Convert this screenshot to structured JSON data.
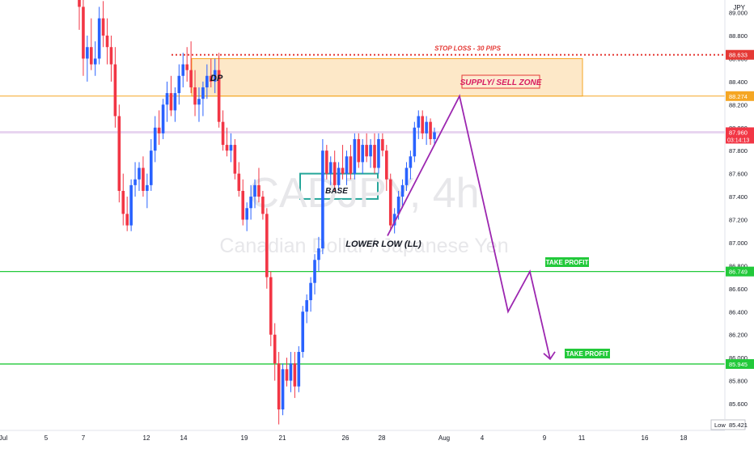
{
  "currency_label": "JPY",
  "watermark": {
    "symbol": "CADJPY, 4h",
    "name": "Canadian Dollar / Japanese Yen"
  },
  "colors": {
    "up": "#2962ff",
    "down": "#f23645",
    "stop_loss": "#e53935",
    "zone_fill": "#fde8c8",
    "zone_border": "#f5a623",
    "target": "#22c93a",
    "base_box": "#26a69a",
    "projection": "#9c27b0",
    "current_price": "#f23645",
    "price_line": "#e8d5f0"
  },
  "axis": {
    "price_ticks": [
      "85.600",
      "85.800",
      "86.000",
      "86.200",
      "86.400",
      "86.600",
      "86.800",
      "87.000",
      "87.200",
      "87.400",
      "87.600",
      "87.800",
      "88.000",
      "88.200",
      "88.400",
      "88.600",
      "88.800",
      "89.000"
    ],
    "date_ticks": [
      "Jul",
      "5",
      "7",
      "12",
      "14",
      "19",
      "21",
      "26",
      "28",
      "Aug",
      "4",
      "9",
      "11",
      "16",
      "18"
    ],
    "low_label": "Low",
    "low_value": "85.421"
  },
  "price_tags": {
    "stop_loss": "88.633",
    "zone_top": "88.274",
    "current": "87.960",
    "countdown": "03:14:13",
    "tp1": "86.749",
    "tp2": "85.945"
  },
  "annotations": {
    "stop_loss": "STOP LOSS - 30 PIPS",
    "dp": "DP",
    "supply_zone": "SUPPLY/ SELL ZONE",
    "base": "BASE",
    "lower_low": "LOWER LOW (LL)",
    "tp1": "TAKE PROFIT",
    "tp2": "TAKE PROFIT"
  },
  "chart_data": {
    "type": "candlestick",
    "symbol": "CADJPY",
    "timeframe": "4h",
    "ylim": [
      85.35,
      89.05
    ],
    "levels": {
      "stop_loss": 88.633,
      "supply_zone": [
        88.274,
        88.6
      ],
      "current_price": 87.96,
      "base_zone": [
        87.38,
        87.6
      ],
      "take_profit_1": 86.749,
      "take_profit_2": 85.945,
      "low": 85.421
    },
    "candles": [
      {
        "o": 89.25,
        "h": 89.4,
        "l": 88.85,
        "c": 89.05
      },
      {
        "o": 89.05,
        "h": 89.15,
        "l": 88.45,
        "c": 88.6
      },
      {
        "o": 88.6,
        "h": 88.8,
        "l": 88.4,
        "c": 88.7
      },
      {
        "o": 88.7,
        "h": 88.95,
        "l": 88.5,
        "c": 88.55
      },
      {
        "o": 88.55,
        "h": 88.75,
        "l": 88.45,
        "c": 88.6
      },
      {
        "o": 88.6,
        "h": 89.05,
        "l": 88.55,
        "c": 88.95
      },
      {
        "o": 88.95,
        "h": 89.1,
        "l": 88.7,
        "c": 88.8
      },
      {
        "o": 88.8,
        "h": 88.95,
        "l": 88.55,
        "c": 88.7
      },
      {
        "o": 88.7,
        "h": 88.8,
        "l": 88.4,
        "c": 88.55
      },
      {
        "o": 88.55,
        "h": 88.7,
        "l": 88.0,
        "c": 88.1
      },
      {
        "o": 88.1,
        "h": 88.2,
        "l": 87.35,
        "c": 87.45
      },
      {
        "o": 87.45,
        "h": 87.6,
        "l": 87.15,
        "c": 87.25
      },
      {
        "o": 87.25,
        "h": 87.4,
        "l": 87.1,
        "c": 87.15
      },
      {
        "o": 87.15,
        "h": 87.55,
        "l": 87.1,
        "c": 87.5
      },
      {
        "o": 87.5,
        "h": 87.7,
        "l": 87.4,
        "c": 87.55
      },
      {
        "o": 87.55,
        "h": 87.7,
        "l": 87.45,
        "c": 87.65
      },
      {
        "o": 87.65,
        "h": 87.75,
        "l": 87.4,
        "c": 87.45
      },
      {
        "o": 87.45,
        "h": 87.6,
        "l": 87.3,
        "c": 87.5
      },
      {
        "o": 87.5,
        "h": 87.9,
        "l": 87.45,
        "c": 87.8
      },
      {
        "o": 87.8,
        "h": 88.1,
        "l": 87.7,
        "c": 88.0
      },
      {
        "o": 88.0,
        "h": 88.15,
        "l": 87.85,
        "c": 87.95
      },
      {
        "o": 87.95,
        "h": 88.25,
        "l": 87.9,
        "c": 88.2
      },
      {
        "o": 88.2,
        "h": 88.4,
        "l": 88.05,
        "c": 88.3
      },
      {
        "o": 88.3,
        "h": 88.45,
        "l": 88.1,
        "c": 88.15
      },
      {
        "o": 88.15,
        "h": 88.35,
        "l": 88.05,
        "c": 88.3
      },
      {
        "o": 88.3,
        "h": 88.55,
        "l": 88.2,
        "c": 88.45
      },
      {
        "o": 88.45,
        "h": 88.65,
        "l": 88.35,
        "c": 88.55
      },
      {
        "o": 88.55,
        "h": 88.7,
        "l": 88.4,
        "c": 88.5
      },
      {
        "o": 88.5,
        "h": 88.75,
        "l": 88.3,
        "c": 88.35
      },
      {
        "o": 88.35,
        "h": 88.5,
        "l": 88.1,
        "c": 88.2
      },
      {
        "o": 88.2,
        "h": 88.35,
        "l": 88.05,
        "c": 88.25
      },
      {
        "o": 88.25,
        "h": 88.4,
        "l": 88.1,
        "c": 88.35
      },
      {
        "o": 88.35,
        "h": 88.55,
        "l": 88.25,
        "c": 88.45
      },
      {
        "o": 88.45,
        "h": 88.6,
        "l": 88.35,
        "c": 88.4
      },
      {
        "o": 88.4,
        "h": 88.6,
        "l": 88.3,
        "c": 88.5
      },
      {
        "o": 88.5,
        "h": 88.65,
        "l": 88.0,
        "c": 88.05
      },
      {
        "o": 88.05,
        "h": 88.15,
        "l": 87.8,
        "c": 87.85
      },
      {
        "o": 87.85,
        "h": 88.0,
        "l": 87.75,
        "c": 87.8
      },
      {
        "o": 87.8,
        "h": 87.95,
        "l": 87.7,
        "c": 87.85
      },
      {
        "o": 87.85,
        "h": 87.9,
        "l": 87.55,
        "c": 87.6
      },
      {
        "o": 87.6,
        "h": 87.7,
        "l": 87.4,
        "c": 87.45
      },
      {
        "o": 87.45,
        "h": 87.55,
        "l": 87.15,
        "c": 87.2
      },
      {
        "o": 87.2,
        "h": 87.35,
        "l": 87.1,
        "c": 87.3
      },
      {
        "o": 87.3,
        "h": 87.5,
        "l": 87.2,
        "c": 87.4
      },
      {
        "o": 87.4,
        "h": 87.55,
        "l": 87.3,
        "c": 87.5
      },
      {
        "o": 87.5,
        "h": 87.65,
        "l": 87.35,
        "c": 87.4
      },
      {
        "o": 87.4,
        "h": 87.45,
        "l": 87.2,
        "c": 87.25
      },
      {
        "o": 87.25,
        "h": 87.3,
        "l": 86.6,
        "c": 86.7
      },
      {
        "o": 86.7,
        "h": 86.75,
        "l": 86.1,
        "c": 86.2
      },
      {
        "o": 86.2,
        "h": 86.3,
        "l": 85.8,
        "c": 85.95
      },
      {
        "o": 85.95,
        "h": 86.05,
        "l": 85.42,
        "c": 85.55
      },
      {
        "o": 85.55,
        "h": 85.95,
        "l": 85.5,
        "c": 85.9
      },
      {
        "o": 85.9,
        "h": 86.0,
        "l": 85.75,
        "c": 85.8
      },
      {
        "o": 85.8,
        "h": 86.05,
        "l": 85.7,
        "c": 85.95
      },
      {
        "o": 85.95,
        "h": 86.05,
        "l": 85.65,
        "c": 85.75
      },
      {
        "o": 85.75,
        "h": 86.1,
        "l": 85.7,
        "c": 86.05
      },
      {
        "o": 86.05,
        "h": 86.45,
        "l": 86.0,
        "c": 86.4
      },
      {
        "o": 86.4,
        "h": 86.55,
        "l": 86.3,
        "c": 86.5
      },
      {
        "o": 86.5,
        "h": 86.7,
        "l": 86.4,
        "c": 86.65
      },
      {
        "o": 86.65,
        "h": 86.9,
        "l": 86.55,
        "c": 86.85
      },
      {
        "o": 86.85,
        "h": 87.05,
        "l": 86.75,
        "c": 86.95
      },
      {
        "o": 86.95,
        "h": 87.9,
        "l": 86.9,
        "c": 87.8
      },
      {
        "o": 87.8,
        "h": 87.85,
        "l": 87.55,
        "c": 87.6
      },
      {
        "o": 87.6,
        "h": 87.75,
        "l": 87.5,
        "c": 87.7
      },
      {
        "o": 87.7,
        "h": 87.8,
        "l": 87.45,
        "c": 87.5
      },
      {
        "o": 87.5,
        "h": 87.7,
        "l": 87.45,
        "c": 87.65
      },
      {
        "o": 87.65,
        "h": 87.85,
        "l": 87.55,
        "c": 87.6
      },
      {
        "o": 87.6,
        "h": 87.8,
        "l": 87.5,
        "c": 87.75
      },
      {
        "o": 87.75,
        "h": 87.85,
        "l": 87.55,
        "c": 87.6
      },
      {
        "o": 87.6,
        "h": 87.95,
        "l": 87.55,
        "c": 87.9
      },
      {
        "o": 87.9,
        "h": 87.95,
        "l": 87.65,
        "c": 87.7
      },
      {
        "o": 87.7,
        "h": 87.9,
        "l": 87.6,
        "c": 87.85
      },
      {
        "o": 87.85,
        "h": 87.95,
        "l": 87.7,
        "c": 87.75
      },
      {
        "o": 87.75,
        "h": 87.9,
        "l": 87.65,
        "c": 87.85
      },
      {
        "o": 87.85,
        "h": 87.95,
        "l": 87.6,
        "c": 87.65
      },
      {
        "o": 87.65,
        "h": 87.95,
        "l": 87.6,
        "c": 87.9
      },
      {
        "o": 87.9,
        "h": 87.95,
        "l": 87.75,
        "c": 87.8
      },
      {
        "o": 87.8,
        "h": 87.85,
        "l": 87.45,
        "c": 87.55
      },
      {
        "o": 87.55,
        "h": 87.6,
        "l": 87.1,
        "c": 87.15
      },
      {
        "o": 87.15,
        "h": 87.3,
        "l": 87.08,
        "c": 87.25
      },
      {
        "o": 87.25,
        "h": 87.45,
        "l": 87.2,
        "c": 87.4
      },
      {
        "o": 87.4,
        "h": 87.55,
        "l": 87.3,
        "c": 87.5
      },
      {
        "o": 87.5,
        "h": 87.7,
        "l": 87.45,
        "c": 87.65
      },
      {
        "o": 87.65,
        "h": 87.8,
        "l": 87.55,
        "c": 87.75
      },
      {
        "o": 87.75,
        "h": 88.05,
        "l": 87.7,
        "c": 88.0
      },
      {
        "o": 88.0,
        "h": 88.15,
        "l": 87.9,
        "c": 88.1
      },
      {
        "o": 88.1,
        "h": 88.15,
        "l": 87.9,
        "c": 87.95
      },
      {
        "o": 87.95,
        "h": 88.1,
        "l": 87.85,
        "c": 88.05
      },
      {
        "o": 88.05,
        "h": 88.08,
        "l": 87.85,
        "c": 87.9
      },
      {
        "o": 87.9,
        "h": 88.0,
        "l": 87.85,
        "c": 87.96
      }
    ],
    "projection_path": [
      [
        88.274
      ],
      [
        86.4
      ],
      [
        86.749
      ],
      [
        85.96
      ]
    ]
  }
}
